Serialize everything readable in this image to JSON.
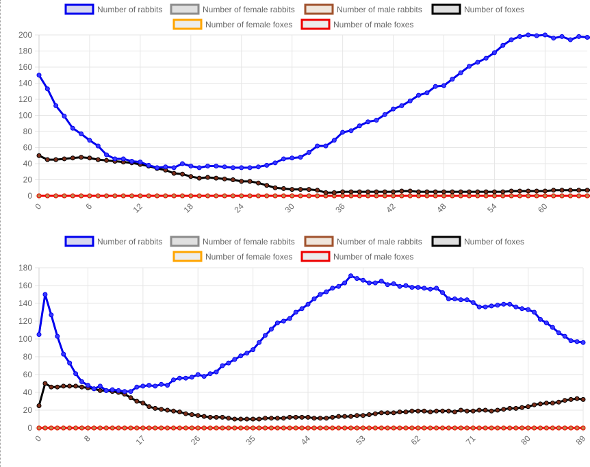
{
  "chart_data": [
    {
      "type": "line",
      "legend": {
        "position": "top",
        "items": [
          {
            "label": "Number of rabbits",
            "stroke": "#0000ee",
            "fill": "#d8d8f0"
          },
          {
            "label": "Number of female rabbits",
            "stroke": "#8c8c8c",
            "fill": "#e0e0e0"
          },
          {
            "label": "Number of male rabbits",
            "stroke": "#a0522d",
            "fill": "#f0e6dc"
          },
          {
            "label": "Number of foxes",
            "stroke": "#000000",
            "fill": "#e0e0e0"
          },
          {
            "label": "Number of female foxes",
            "stroke": "#ffa500",
            "fill": "#ececec"
          },
          {
            "label": "Number of male foxes",
            "stroke": "#ee0000",
            "fill": "#ececec"
          }
        ]
      },
      "x_ticks": [
        "0",
        "6",
        "12",
        "18",
        "24",
        "30",
        "36",
        "42",
        "48",
        "54",
        "60"
      ],
      "y_ticks": [
        "0",
        "20",
        "40",
        "60",
        "80",
        "100",
        "120",
        "140",
        "160",
        "180",
        "200"
      ],
      "ylim": [
        0,
        200
      ],
      "xlim": [
        0,
        65
      ],
      "grid": true,
      "series": [
        {
          "name": "Number of rabbits",
          "color": "#0000ee",
          "values": [
            150,
            133,
            112,
            99,
            84,
            77,
            69,
            62,
            51,
            46,
            46,
            43,
            42,
            38,
            35,
            36,
            35,
            40,
            37,
            35,
            37,
            37,
            36,
            35,
            35,
            35,
            36,
            38,
            41,
            46,
            47,
            48,
            54,
            62,
            62,
            69,
            79,
            81,
            87,
            92,
            94,
            101,
            108,
            112,
            118,
            125,
            128,
            136,
            137,
            145,
            153,
            161,
            166,
            171,
            178,
            187,
            194,
            198,
            200,
            199,
            200,
            196,
            198,
            194,
            198,
            197,
            196
          ],
          "xstart": 0
        },
        {
          "name": "Number of foxes",
          "color": "#000000",
          "values": [
            50,
            45,
            45,
            46,
            47,
            48,
            47,
            45,
            44,
            43,
            42,
            41,
            39,
            37,
            34,
            32,
            28,
            27,
            24,
            22,
            23,
            22,
            21,
            20,
            18,
            18,
            16,
            13,
            10,
            9,
            8,
            8,
            8,
            7,
            4,
            4,
            5,
            5,
            5,
            5,
            5,
            5,
            5,
            6,
            6,
            5,
            5,
            5,
            5,
            5,
            5,
            5,
            5,
            5,
            5,
            5,
            6,
            6,
            6,
            6,
            6,
            7,
            7,
            7,
            7,
            7,
            7
          ],
          "xstart": 0
        },
        {
          "name": "Number of female rabbits",
          "color": "#8c8c8c",
          "values": "zeros"
        },
        {
          "name": "Number of male rabbits",
          "color": "#a0522d",
          "values": "zeros"
        },
        {
          "name": "Number of female foxes",
          "color": "#ffa500",
          "values": "zeros"
        },
        {
          "name": "Number of male foxes",
          "color": "#ee0000",
          "values": "zeros"
        }
      ]
    },
    {
      "type": "line",
      "legend": {
        "position": "top",
        "items": [
          {
            "label": "Number of rabbits",
            "stroke": "#0000ee",
            "fill": "#d8d8f0"
          },
          {
            "label": "Number of female rabbits",
            "stroke": "#8c8c8c",
            "fill": "#e0e0e0"
          },
          {
            "label": "Number of male rabbits",
            "stroke": "#a0522d",
            "fill": "#f0e6dc"
          },
          {
            "label": "Number of foxes",
            "stroke": "#000000",
            "fill": "#e0e0e0"
          },
          {
            "label": "Number of female foxes",
            "stroke": "#ffa500",
            "fill": "#ececec"
          },
          {
            "label": "Number of male foxes",
            "stroke": "#ee0000",
            "fill": "#ececec"
          }
        ]
      },
      "x_ticks": [
        "0",
        "8",
        "17",
        "26",
        "35",
        "44",
        "53",
        "62",
        "71",
        "80",
        "89"
      ],
      "y_ticks": [
        "0",
        "20",
        "40",
        "60",
        "80",
        "100",
        "120",
        "140",
        "160",
        "180"
      ],
      "ylim": [
        0,
        180
      ],
      "xlim": [
        0,
        89
      ],
      "grid": true,
      "series": [
        {
          "name": "Number of rabbits",
          "color": "#0000ee",
          "values": [
            105,
            150,
            127,
            103,
            83,
            73,
            61,
            52,
            48,
            44,
            47,
            42,
            43,
            42,
            41,
            41,
            46,
            47,
            48,
            47,
            49,
            48,
            54,
            56,
            56,
            57,
            60,
            58,
            61,
            63,
            70,
            73,
            77,
            81,
            84,
            88,
            96,
            104,
            111,
            118,
            120,
            123,
            130,
            134,
            139,
            145,
            150,
            153,
            157,
            159,
            163,
            171,
            168,
            166,
            163,
            163,
            165,
            161,
            162,
            159,
            160,
            158,
            158,
            157,
            156,
            157,
            152,
            145,
            145,
            144,
            144,
            141,
            136,
            136,
            137,
            138,
            139,
            139,
            136,
            134,
            133,
            130,
            122,
            118,
            113,
            107,
            103,
            98,
            97,
            96
          ],
          "xstart": 0
        },
        {
          "name": "Number of foxes",
          "color": "#000000",
          "values": [
            25,
            50,
            46,
            46,
            47,
            47,
            47,
            46,
            45,
            44,
            42,
            42,
            41,
            40,
            38,
            34,
            30,
            28,
            24,
            22,
            21,
            20,
            19,
            18,
            16,
            15,
            14,
            13,
            12,
            12,
            12,
            11,
            10,
            10,
            10,
            10,
            10,
            11,
            11,
            11,
            11,
            12,
            12,
            12,
            12,
            11,
            11,
            11,
            12,
            13,
            13,
            13,
            14,
            14,
            15,
            16,
            17,
            17,
            17,
            18,
            18,
            19,
            19,
            19,
            18,
            19,
            19,
            19,
            18,
            20,
            19,
            19,
            20,
            20,
            19,
            20,
            21,
            22,
            22,
            23,
            24,
            26,
            27,
            28,
            28,
            29,
            31,
            32,
            33,
            32
          ],
          "xstart": 0
        },
        {
          "name": "Number of female rabbits",
          "color": "#8c8c8c",
          "values": "zeros"
        },
        {
          "name": "Number of male rabbits",
          "color": "#a0522d",
          "values": "zeros"
        },
        {
          "name": "Number of female foxes",
          "color": "#ffa500",
          "values": "zeros"
        },
        {
          "name": "Number of male foxes",
          "color": "#ee0000",
          "values": "zeros"
        }
      ]
    }
  ]
}
